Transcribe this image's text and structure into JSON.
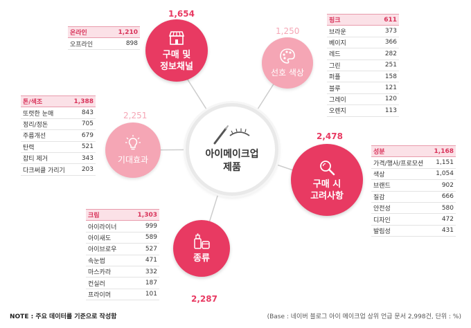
{
  "center": {
    "title_line1": "아이메이크업",
    "title_line2": "제품"
  },
  "nodes": {
    "purchase_info": {
      "line1": "구매 및",
      "line2": "정보채널",
      "count": "1,654",
      "icon": "store-icon"
    },
    "color_pref": {
      "line1": "선호 색상",
      "count": "1,250",
      "icon": "palette-icon"
    },
    "expectation": {
      "line1": "기대효과",
      "count": "2,251",
      "icon": "lightbulb-icon"
    },
    "purchase_factor": {
      "line1": "구매 시",
      "line2": "고려사항",
      "count": "2,478",
      "icon": "magnifier-icon"
    },
    "type": {
      "line1": "종류",
      "count": "2,287",
      "icon": "cosmetics-icon"
    }
  },
  "tables": {
    "channel": {
      "header": {
        "label": "온라인",
        "value": "1,210"
      },
      "rows": [
        {
          "label": "오프라인",
          "value": "898"
        }
      ]
    },
    "color": {
      "header": {
        "label": "핑크",
        "value": "611"
      },
      "rows": [
        {
          "label": "브라운",
          "value": "373"
        },
        {
          "label": "베이지",
          "value": "366"
        },
        {
          "label": "레드",
          "value": "282"
        },
        {
          "label": "그린",
          "value": "251"
        },
        {
          "label": "퍼플",
          "value": "158"
        },
        {
          "label": "블루",
          "value": "121"
        },
        {
          "label": "그레이",
          "value": "120"
        },
        {
          "label": "오렌지",
          "value": "113"
        }
      ]
    },
    "effect": {
      "header": {
        "label": "톤/색조",
        "value": "1,388"
      },
      "rows": [
        {
          "label": "또렷한 눈매",
          "value": "843"
        },
        {
          "label": "정리/정돈",
          "value": "705"
        },
        {
          "label": "주름개선",
          "value": "679"
        },
        {
          "label": "탄력",
          "value": "521"
        },
        {
          "label": "잡티 제거",
          "value": "343"
        },
        {
          "label": "다크써클 가리기",
          "value": "203"
        }
      ]
    },
    "factor": {
      "header": {
        "label": "성분",
        "value": "1,168"
      },
      "rows": [
        {
          "label": "가격/행사/프로모션",
          "value": "1,151"
        },
        {
          "label": "색상",
          "value": "1,054"
        },
        {
          "label": "브랜드",
          "value": "902"
        },
        {
          "label": "질감",
          "value": "666"
        },
        {
          "label": "안전성",
          "value": "580"
        },
        {
          "label": "디자인",
          "value": "472"
        },
        {
          "label": "발림성",
          "value": "431"
        }
      ]
    },
    "kind": {
      "header": {
        "label": "크림",
        "value": "1,303"
      },
      "rows": [
        {
          "label": "아이라이너",
          "value": "999"
        },
        {
          "label": "아이새도",
          "value": "589"
        },
        {
          "label": "아이브로우",
          "value": "527"
        },
        {
          "label": "속눈썹",
          "value": "471"
        },
        {
          "label": "마스카라",
          "value": "332"
        },
        {
          "label": "컨실러",
          "value": "187"
        },
        {
          "label": "프라이머",
          "value": "101"
        }
      ]
    }
  },
  "footer": {
    "note": "NOTE : 주요 데이터를 기준으로 작성함",
    "base": "(Base : 네이버 블로그 아이 메이크업 상위 언급 문서 2,998건, 단위 : %)"
  },
  "colors": {
    "accent": "#e83a62",
    "light_accent": "#f5a6b5",
    "header_bg": "#fbe1e7"
  }
}
